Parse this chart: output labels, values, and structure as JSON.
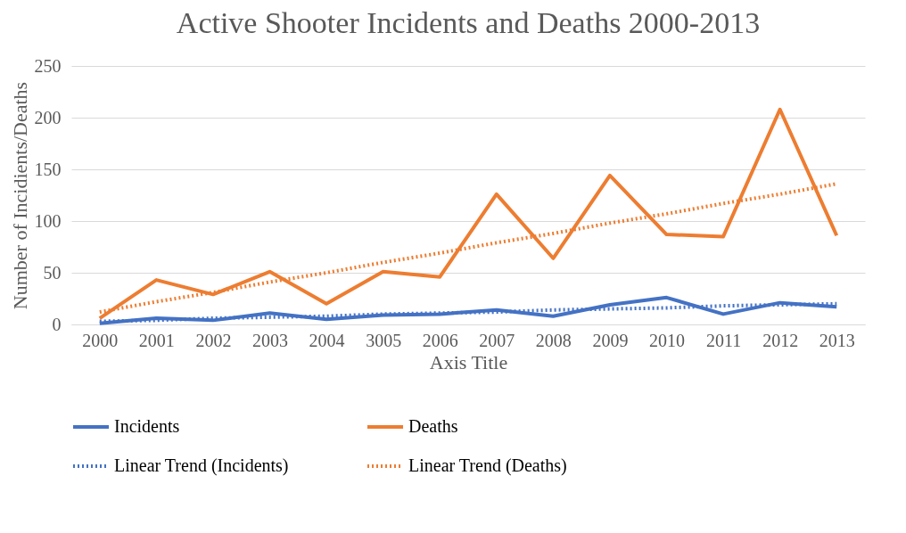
{
  "chart_data": {
    "type": "line",
    "title": "Active Shooter Incidents and Deaths 2000-2013",
    "xlabel": "Axis Title",
    "ylabel": "Number of Incidients/Deaths",
    "categories": [
      "2000",
      "2001",
      "2002",
      "2003",
      "2004",
      "3005",
      "2006",
      "2007",
      "2008",
      "2009",
      "2010",
      "2011",
      "2012",
      "2013"
    ],
    "series": [
      {
        "name": "Incidents",
        "color": "#4472c4",
        "line_style": "solid",
        "values": [
          1,
          6,
          4,
          11,
          5,
          9,
          10,
          14,
          8,
          19,
          26,
          10,
          21,
          17
        ]
      },
      {
        "name": "Deaths",
        "color": "#ed7d31",
        "line_style": "solid",
        "values": [
          6,
          43,
          29,
          51,
          20,
          51,
          46,
          126,
          64,
          144,
          87,
          85,
          208,
          86
        ]
      },
      {
        "name": "Linear Trend (Incidents)",
        "color": "#4472c4",
        "line_style": "dotted",
        "values": [
          3,
          4,
          6,
          7,
          8,
          10,
          11,
          12,
          14,
          15,
          16,
          18,
          19,
          20
        ]
      },
      {
        "name": "Linear Trend (Deaths)",
        "color": "#ed7d31",
        "line_style": "dotted",
        "values": [
          12,
          22,
          31,
          41,
          50,
          60,
          69,
          79,
          88,
          98,
          107,
          117,
          126,
          136
        ]
      }
    ],
    "ylim": [
      0,
      250
    ],
    "yticks": [
      0,
      50,
      100,
      150,
      200,
      250
    ],
    "grid": "y",
    "legend": "bottom",
    "marker": "none"
  }
}
